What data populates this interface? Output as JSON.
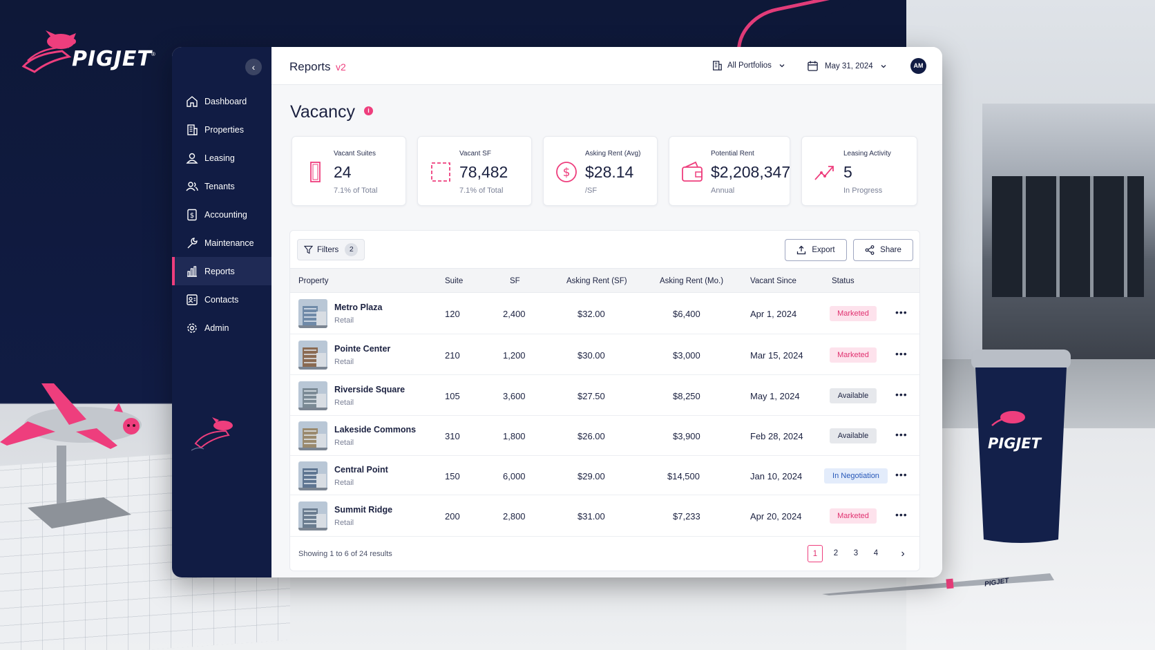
{
  "brand": {
    "name": "PIGJET",
    "tm": "®",
    "cup_text": "PIGJET",
    "pen_text": "PIGJET"
  },
  "colors": {
    "navy": "#111c44",
    "accent": "#ee3e7d"
  },
  "sidebar": {
    "collapse_icon": "chevron-left-icon",
    "items": [
      {
        "label": "Dashboard",
        "icon": "home-icon"
      },
      {
        "label": "Properties",
        "icon": "building-icon"
      },
      {
        "label": "Leasing",
        "icon": "user-icon"
      },
      {
        "label": "Tenants",
        "icon": "users-icon"
      },
      {
        "label": "Accounting",
        "icon": "dollar-doc-icon"
      },
      {
        "label": "Maintenance",
        "icon": "wrench-icon"
      },
      {
        "label": "Reports",
        "icon": "bar-chart-icon",
        "active": true
      },
      {
        "label": "Contacts",
        "icon": "contact-card-icon"
      },
      {
        "label": "Admin",
        "icon": "gear-icon"
      }
    ]
  },
  "header": {
    "title": "Reports",
    "version": "v2",
    "portfolio": "All Portfolios",
    "date": "May 31, 2024",
    "avatar": "AM"
  },
  "page": {
    "title": "Vacancy",
    "info": "i"
  },
  "kpis": [
    {
      "label": "Vacant Suites",
      "value": "24",
      "sub": "7.1% of Total",
      "icon": "door-icon"
    },
    {
      "label": "Vacant SF",
      "value": "78,482",
      "sub": "7.1% of Total",
      "icon": "dashed-square-icon"
    },
    {
      "label": "Asking Rent (Avg)",
      "value": "$28.14",
      "sub": "/SF",
      "icon": "dollar-circle-icon"
    },
    {
      "label": "Potential Rent",
      "value": "$2,208,347",
      "sub": "Annual",
      "icon": "wallet-icon"
    },
    {
      "label": "Leasing Activity",
      "value": "5",
      "sub": "In Progress",
      "icon": "trend-up-icon"
    }
  ],
  "toolbar": {
    "filters_label": "Filters",
    "filters_count": "2",
    "export_label": "Export",
    "share_label": "Share"
  },
  "table": {
    "columns": [
      "Property",
      "Suite",
      "SF",
      "Asking Rent (SF)",
      "Asking Rent (Mo.)",
      "Vacant Since",
      "Status"
    ],
    "rows": [
      {
        "name": "Metro Plaza",
        "type": "Retail",
        "suite": "120",
        "sf": "2,400",
        "rent_sf": "$32.00",
        "rent_mo": "$6,400",
        "since": "Apr 1, 2024",
        "status": "Marketed"
      },
      {
        "name": "Pointe Center",
        "type": "Retail",
        "suite": "210",
        "sf": "1,200",
        "rent_sf": "$30.00",
        "rent_mo": "$3,000",
        "since": "Mar 15, 2024",
        "status": "Marketed"
      },
      {
        "name": "Riverside Square",
        "type": "Retail",
        "suite": "105",
        "sf": "3,600",
        "rent_sf": "$27.50",
        "rent_mo": "$8,250",
        "since": "May 1, 2024",
        "status": "Available"
      },
      {
        "name": "Lakeside Commons",
        "type": "Retail",
        "suite": "310",
        "sf": "1,800",
        "rent_sf": "$26.00",
        "rent_mo": "$3,900",
        "since": "Feb 28, 2024",
        "status": "Available"
      },
      {
        "name": "Central Point",
        "type": "Retail",
        "suite": "150",
        "sf": "6,000",
        "rent_sf": "$29.00",
        "rent_mo": "$14,500",
        "since": "Jan 10, 2024",
        "status": "In Negotiation"
      },
      {
        "name": "Summit Ridge",
        "type": "Retail",
        "suite": "200",
        "sf": "2,800",
        "rent_sf": "$31.00",
        "rent_mo": "$7,233",
        "since": "Apr 20, 2024",
        "status": "Marketed"
      }
    ],
    "row_action": "•••"
  },
  "pagination": {
    "summary": "Showing 1 to 6 of 24 results",
    "pages": [
      "1",
      "2",
      "3",
      "4"
    ],
    "current": "1",
    "next": "›"
  }
}
